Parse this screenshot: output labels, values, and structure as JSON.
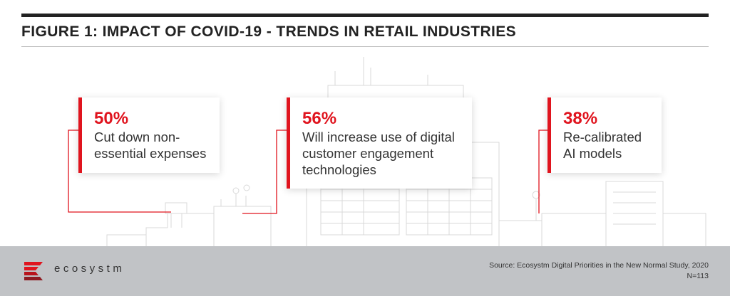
{
  "header": {
    "title": "FIGURE 1: IMPACT OF COVID-19 - TRENDS IN RETAIL INDUSTRIES"
  },
  "cards": [
    {
      "value": "50%",
      "text_lines": [
        "Cut down non-",
        "essential expenses"
      ]
    },
    {
      "value": "56%",
      "text_lines": [
        "Will increase use of digital",
        "customer engagement",
        "technologies"
      ]
    },
    {
      "value": "38%",
      "text_lines": [
        "Re-calibrated",
        "AI models"
      ]
    }
  ],
  "footer": {
    "brand": "ecosystm",
    "source": "Source: Ecosystm Digital Priorities in the New Normal Study, 2020",
    "sample": "N=113"
  },
  "colors": {
    "accent": "#e0141e",
    "title": "#222222",
    "footer_bg": "#c1c3c6",
    "logo_dark": "#8e1b22"
  },
  "icons": [
    "ecosystm-logo-icon",
    "city-skyline-illustration"
  ]
}
